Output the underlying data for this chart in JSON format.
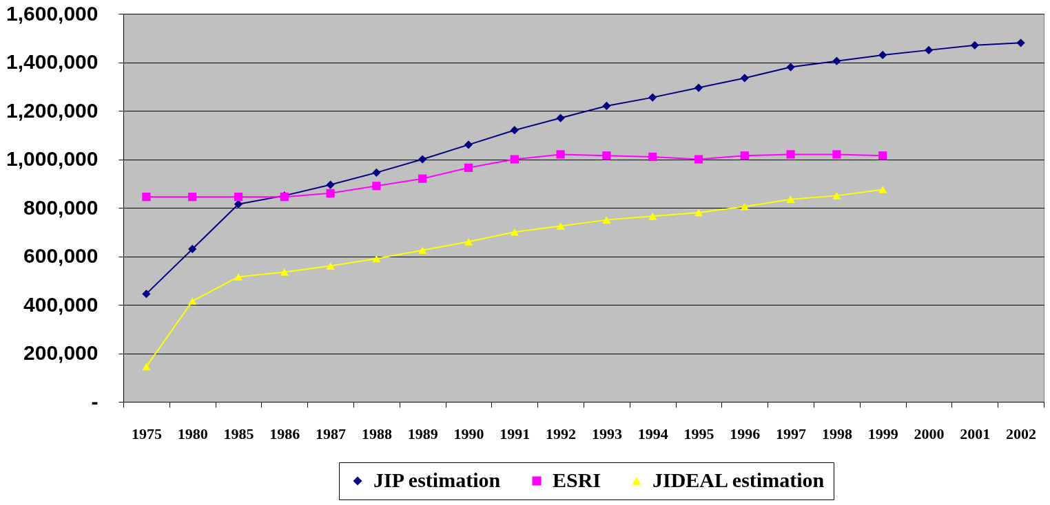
{
  "chart_data": {
    "type": "line",
    "categories": [
      "1975",
      "1980",
      "1985",
      "1986",
      "1987",
      "1988",
      "1989",
      "1990",
      "1991",
      "1992",
      "1993",
      "1994",
      "1995",
      "1996",
      "1997",
      "1998",
      "1999",
      "2000",
      "2001",
      "2002"
    ],
    "series": [
      {
        "name": "JIP estimation",
        "color": "#000080",
        "marker": "diamond",
        "values": [
          445000,
          630000,
          815000,
          850000,
          895000,
          945000,
          1000000,
          1060000,
          1120000,
          1170000,
          1220000,
          1255000,
          1295000,
          1335000,
          1380000,
          1405000,
          1430000,
          1450000,
          1470000,
          1480000
        ]
      },
      {
        "name": "ESRI",
        "color": "#ff00ff",
        "marker": "square",
        "values": [
          845000,
          845000,
          845000,
          845000,
          860000,
          890000,
          920000,
          965000,
          1000000,
          1020000,
          1015000,
          1010000,
          1000000,
          1015000,
          1020000,
          1020000,
          1015000,
          null,
          null,
          null
        ]
      },
      {
        "name": "JIDEAL estimation",
        "color": "#ffff00",
        "marker": "triangle",
        "values": [
          145000,
          415000,
          515000,
          535000,
          560000,
          590000,
          625000,
          660000,
          700000,
          725000,
          750000,
          765000,
          780000,
          805000,
          835000,
          850000,
          875000,
          null,
          null,
          null
        ]
      }
    ],
    "ylim": [
      0,
      1600000
    ],
    "yticks": [
      {
        "value": 0,
        "label": "-"
      },
      {
        "value": 200000,
        "label": "200,000"
      },
      {
        "value": 400000,
        "label": "400,000"
      },
      {
        "value": 600000,
        "label": "600,000"
      },
      {
        "value": 800000,
        "label": "800,000"
      },
      {
        "value": 1000000,
        "label": "1,000,000"
      },
      {
        "value": 1200000,
        "label": "1,200,000"
      },
      {
        "value": 1400000,
        "label": "1,400,000"
      },
      {
        "value": 1600000,
        "label": "1,600,000"
      }
    ],
    "grid": "y",
    "legend": "bottom",
    "line_style": "solid"
  }
}
